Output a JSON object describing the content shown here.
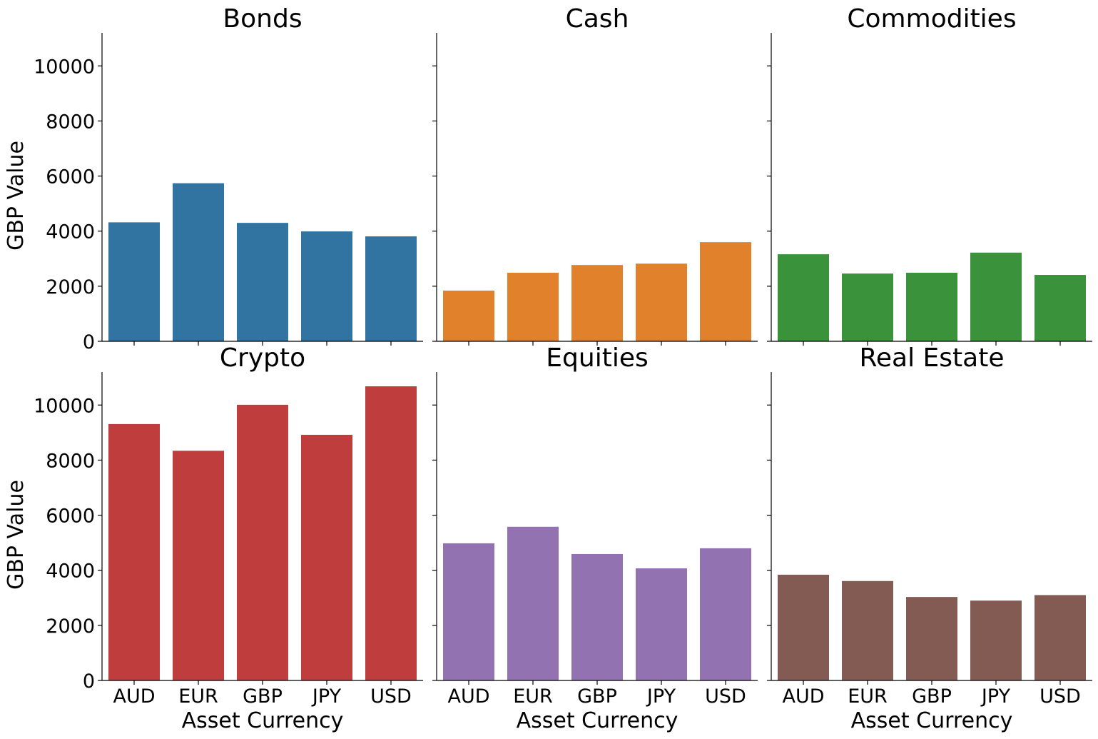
{
  "chart_data": {
    "type": "bar",
    "layout": "facet-grid 2x3, shared y-axis",
    "categories": [
      "AUD",
      "EUR",
      "GBP",
      "JPY",
      "USD"
    ],
    "xlabel": "Asset Currency",
    "ylabel": "GBP Value",
    "ylim": [
      0,
      11200
    ],
    "yticks": [
      0,
      2000,
      4000,
      6000,
      8000,
      10000
    ],
    "grid": false,
    "panels": [
      {
        "title": "Bonds",
        "color": "#3274a1",
        "values": [
          4320,
          5740,
          4300,
          3990,
          3810
        ]
      },
      {
        "title": "Cash",
        "color": "#e1812c",
        "values": [
          1840,
          2490,
          2770,
          2820,
          3600
        ]
      },
      {
        "title": "Commodities",
        "color": "#3a923a",
        "values": [
          3160,
          2460,
          2490,
          3220,
          2410
        ]
      },
      {
        "title": "Crypto",
        "color": "#c03d3e",
        "values": [
          9310,
          8340,
          10010,
          8920,
          10680
        ]
      },
      {
        "title": "Equities",
        "color": "#9372b2",
        "values": [
          4980,
          5580,
          4590,
          4070,
          4800
        ]
      },
      {
        "title": "Real Estate",
        "color": "#845b53",
        "values": [
          3840,
          3610,
          3030,
          2900,
          3100
        ]
      }
    ]
  }
}
